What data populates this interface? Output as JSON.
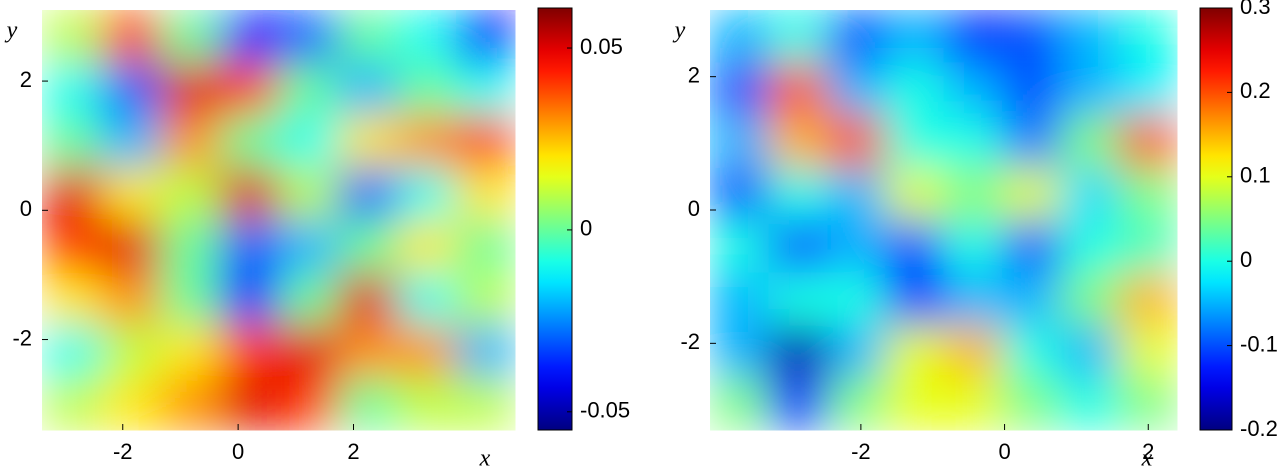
{
  "chart_data": [
    {
      "type": "heatmap",
      "xlabel": "x",
      "ylabel": "y",
      "xlim": [
        -3.4,
        4.8
      ],
      "ylim": [
        -3.4,
        3.1
      ],
      "xticks": [
        -2,
        0,
        2
      ],
      "yticks": [
        -2,
        0,
        2
      ],
      "colormap": "jet",
      "clim": [
        -0.055,
        0.061
      ],
      "cticks": [
        0.05,
        0,
        -0.05
      ],
      "z": [
        [
          0.01,
          0.04,
          0.0,
          -0.04,
          -0.03,
          0.0,
          -0.01,
          -0.04
        ],
        [
          -0.01,
          -0.03,
          0.05,
          0.04,
          0.0,
          -0.02,
          0.0,
          -0.01
        ],
        [
          0.0,
          -0.02,
          0.03,
          0.0,
          -0.01,
          0.02,
          0.03,
          0.04
        ],
        [
          0.05,
          0.02,
          0.01,
          0.05,
          0.01,
          -0.03,
          -0.01,
          0.02
        ],
        [
          0.04,
          0.05,
          0.0,
          -0.03,
          -0.02,
          0.0,
          0.02,
          0.0
        ],
        [
          0.02,
          0.03,
          0.0,
          -0.04,
          0.0,
          0.05,
          -0.01,
          0.01
        ],
        [
          -0.01,
          0.01,
          0.02,
          0.04,
          0.05,
          0.03,
          0.03,
          -0.02
        ],
        [
          0.01,
          0.02,
          0.03,
          0.05,
          0.04,
          0.0,
          0.01,
          0.01
        ]
      ]
    },
    {
      "type": "heatmap",
      "xlabel": "x",
      "ylabel": "y",
      "xlim": [
        -4.1,
        2.4
      ],
      "ylim": [
        -3.3,
        3.0
      ],
      "xticks": [
        -2,
        0,
        2
      ],
      "yticks": [
        -2,
        0,
        2
      ],
      "colormap": "jet",
      "clim": [
        -0.2,
        0.3
      ],
      "cticks": [
        0.3,
        0.2,
        0.1,
        0,
        -0.1,
        -0.2
      ],
      "z": [
        [
          -0.05,
          0.0,
          -0.1,
          -0.05,
          -0.12,
          -0.1,
          -0.05,
          0.0
        ],
        [
          -0.1,
          0.2,
          -0.05,
          0.0,
          -0.05,
          -0.1,
          -0.05,
          -0.02
        ],
        [
          -0.05,
          0.15,
          0.2,
          0.0,
          0.0,
          -0.08,
          0.05,
          0.2
        ],
        [
          -0.1,
          0.0,
          -0.05,
          0.1,
          0.05,
          0.1,
          -0.03,
          0.05
        ],
        [
          0.0,
          -0.1,
          -0.05,
          -0.1,
          0.0,
          -0.1,
          0.0,
          0.02
        ],
        [
          -0.05,
          0.0,
          0.0,
          -0.12,
          -0.05,
          -0.05,
          0.05,
          0.15
        ],
        [
          -0.05,
          -0.18,
          -0.05,
          0.1,
          0.15,
          0.0,
          -0.05,
          0.1
        ],
        [
          0.05,
          -0.12,
          0.05,
          0.1,
          0.1,
          0.05,
          0.0,
          0.05
        ]
      ]
    }
  ]
}
